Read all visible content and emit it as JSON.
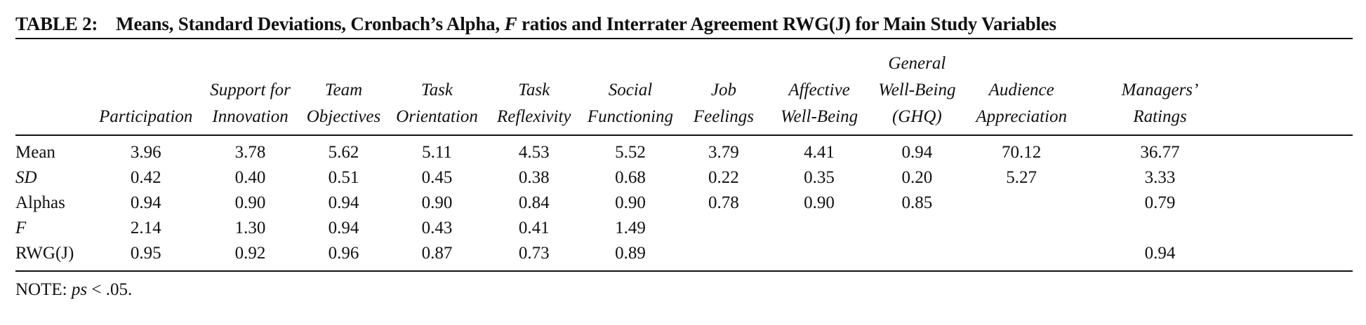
{
  "table_label": "TABLE 2:",
  "table_title": "Means, Standard Deviations, Cronbach’s Alpha,",
  "table_title_f": "F",
  "table_title_rest": "ratios and Interrater Agreement RWG(J) for Main Study Variables",
  "columns": [
    {
      "lines": [
        "Participation"
      ]
    },
    {
      "lines": [
        "Support for",
        "Innovation"
      ]
    },
    {
      "lines": [
        "Team",
        "Objectives"
      ]
    },
    {
      "lines": [
        "Task",
        "Orientation"
      ]
    },
    {
      "lines": [
        "Task",
        "Reflexivity"
      ]
    },
    {
      "lines": [
        "Social",
        "Functioning"
      ]
    },
    {
      "lines": [
        "Job",
        "Feelings"
      ]
    },
    {
      "lines": [
        "Affective",
        "Well-Being"
      ]
    },
    {
      "lines": [
        "General",
        "Well-Being",
        "(GHQ)"
      ]
    },
    {
      "lines": [
        "Audience",
        "Appreciation"
      ]
    },
    {
      "lines": [
        "Managers’",
        "Ratings"
      ]
    }
  ],
  "rows": [
    {
      "label": "Mean",
      "italic": false,
      "values": [
        "3.96",
        "3.78",
        "5.62",
        "5.11",
        "4.53",
        "5.52",
        "3.79",
        "4.41",
        "0.94",
        "70.12",
        "36.77"
      ]
    },
    {
      "label": "SD",
      "italic": true,
      "values": [
        "0.42",
        "0.40",
        "0.51",
        "0.45",
        "0.38",
        "0.68",
        "0.22",
        "0.35",
        "0.20",
        "5.27",
        "3.33"
      ]
    },
    {
      "label": "Alphas",
      "italic": false,
      "values": [
        "0.94",
        "0.90",
        "0.94",
        "0.90",
        "0.84",
        "0.90",
        "0.78",
        "0.90",
        "0.85",
        "",
        "0.79"
      ]
    },
    {
      "label": "F",
      "italic": true,
      "values": [
        "2.14",
        "1.30",
        "0.94",
        "0.43",
        "0.41",
        "1.49",
        "",
        "",
        "",
        "",
        ""
      ]
    },
    {
      "label": "RWG(J)",
      "italic": false,
      "values": [
        "0.95",
        "0.92",
        "0.96",
        "0.87",
        "0.73",
        "0.89",
        "",
        "",
        "",
        "",
        "0.94"
      ]
    }
  ],
  "note_prefix": "NOTE:",
  "note_ps": "ps",
  "note_rest": "< .05."
}
